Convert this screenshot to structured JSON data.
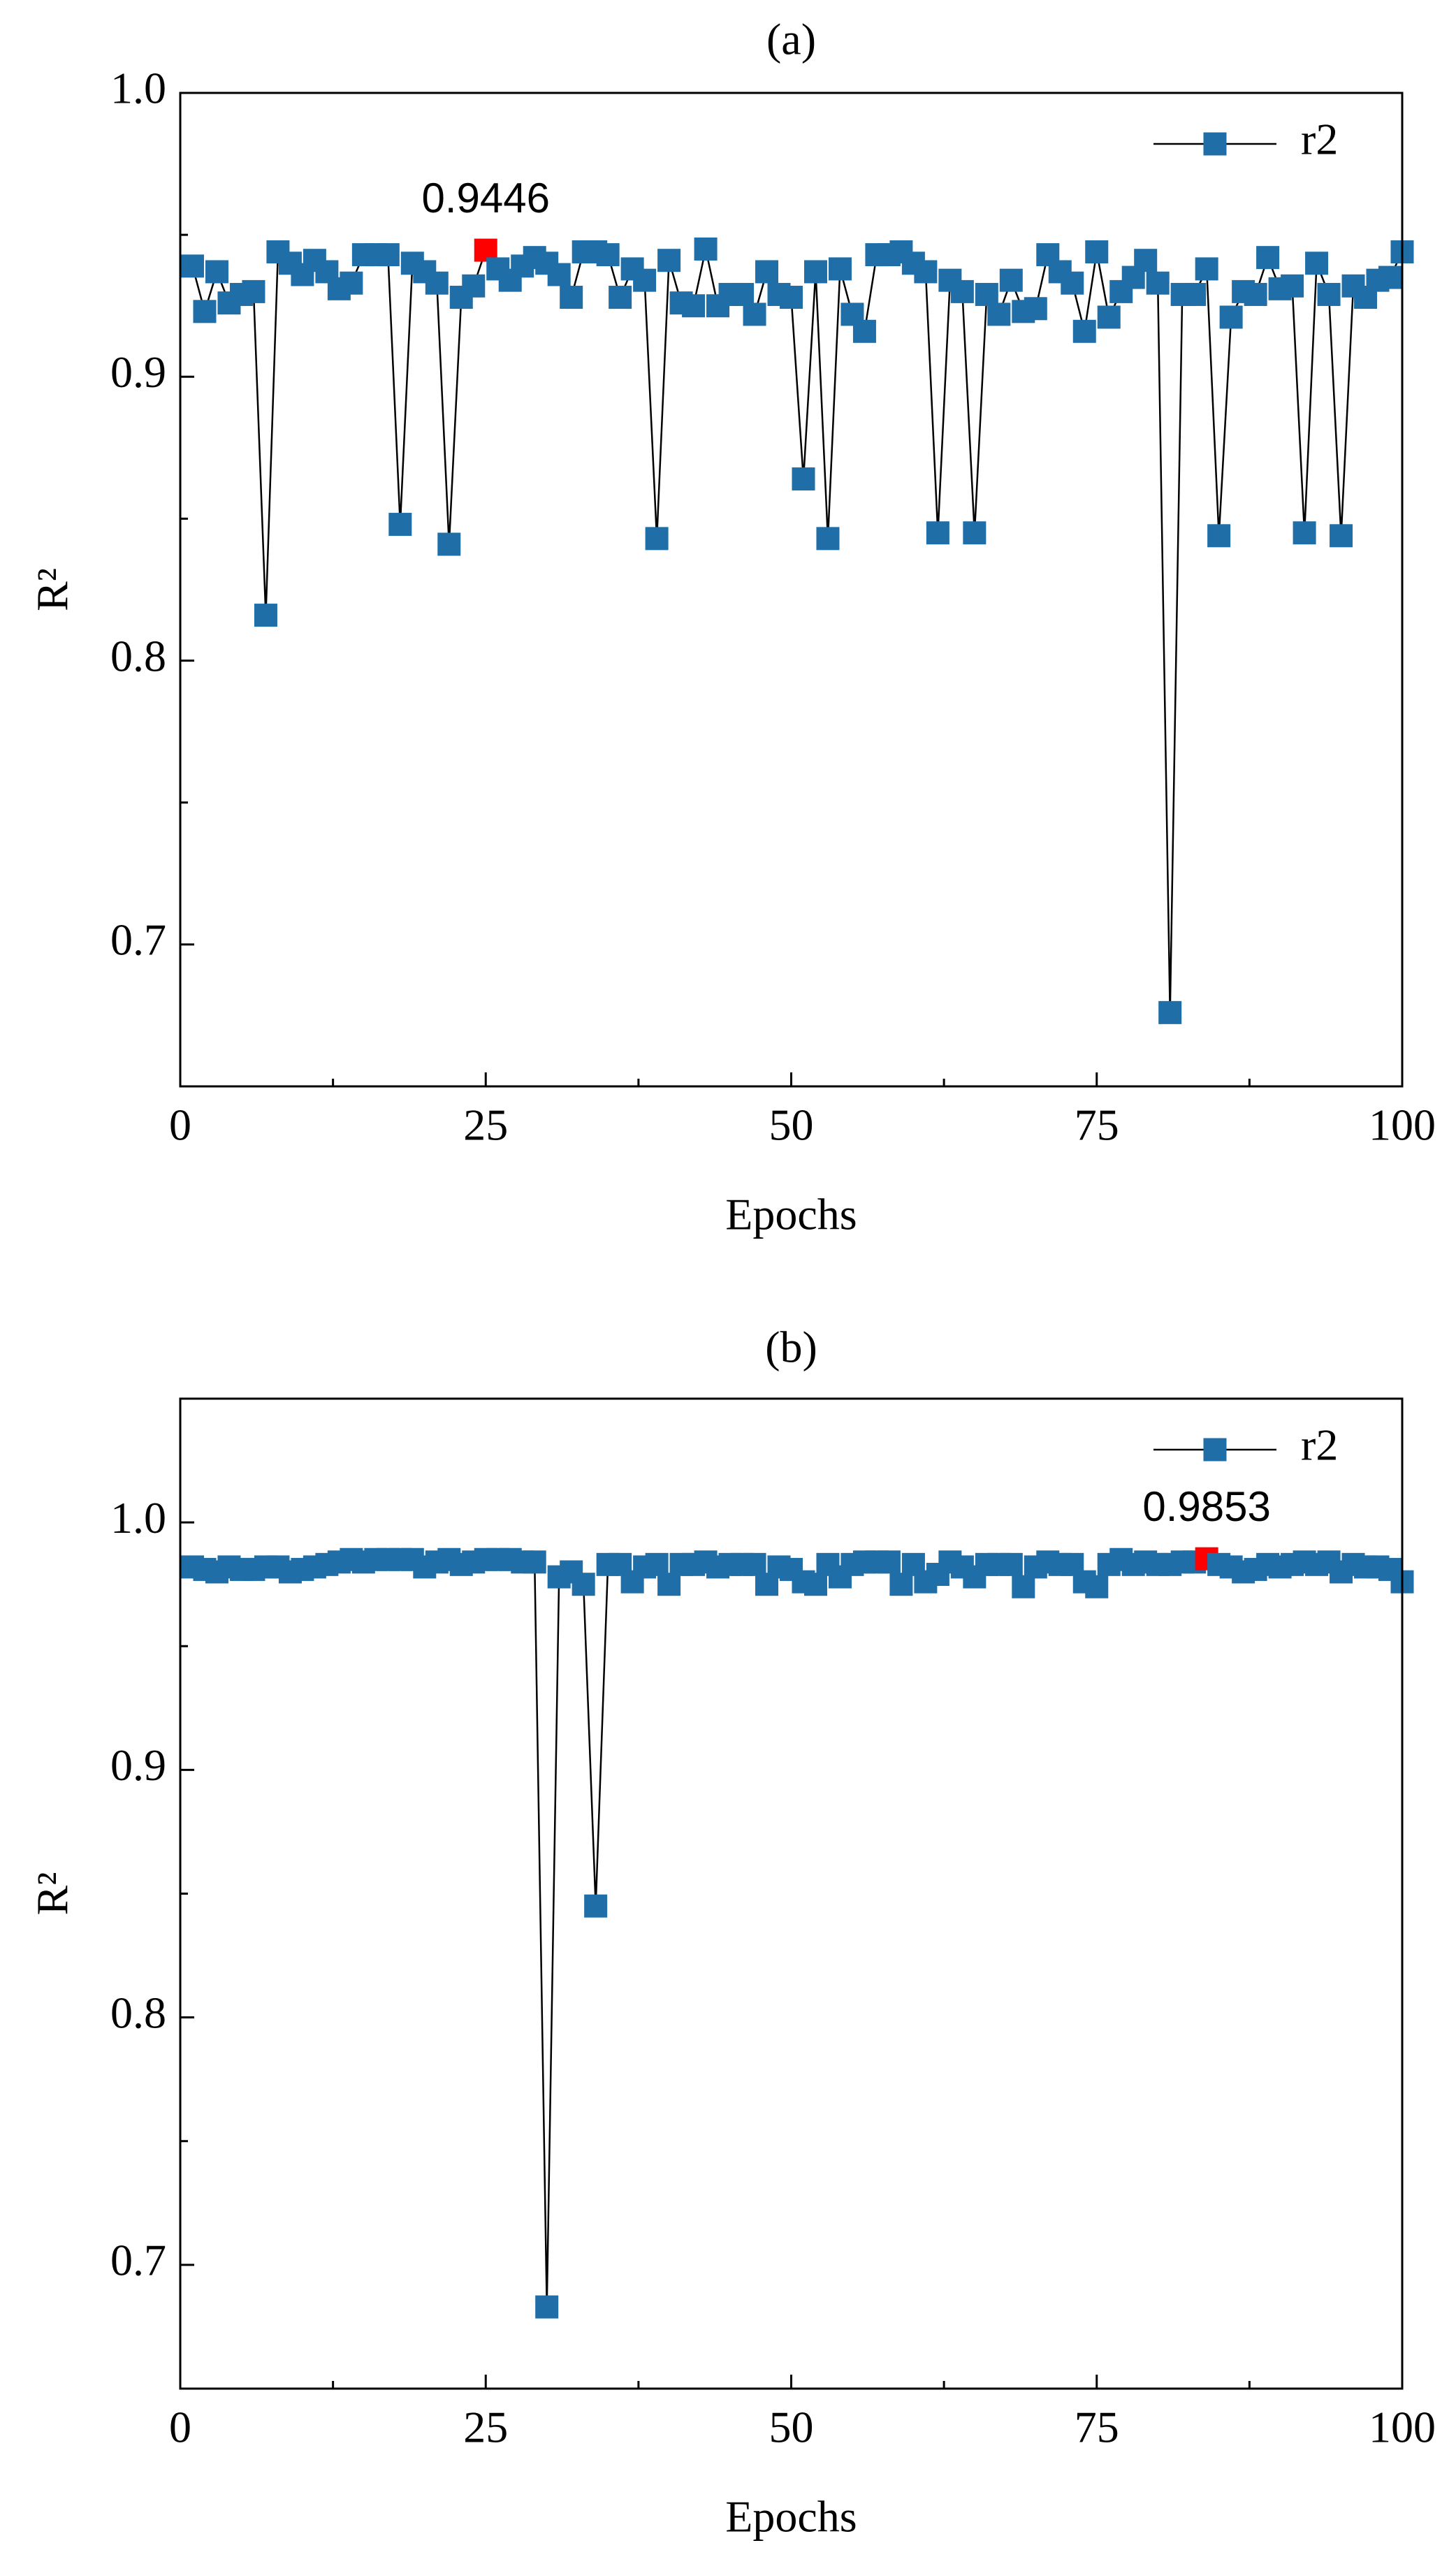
{
  "chart_data": [
    {
      "type": "line",
      "title": "(a)",
      "x_label": "Epochs",
      "y_label": "R²",
      "xlim": [
        0,
        100
      ],
      "xticks": [
        0,
        25,
        50,
        75,
        100
      ],
      "xminorticks": [
        12.5,
        37.5,
        62.5,
        87.5
      ],
      "ylim": [
        0.65,
        1.0
      ],
      "yticks": [
        {
          "value": 0.7,
          "label": "0.7"
        },
        {
          "value": 0.8,
          "label": "0.8"
        },
        {
          "value": 0.9,
          "label": "0.9"
        },
        {
          "value": 1.0,
          "label": "1.0"
        }
      ],
      "yminorticks": [
        0.75,
        0.85,
        0.95
      ],
      "legend": "upper right",
      "line_color": "#000000",
      "x": [
        1,
        2,
        3,
        4,
        5,
        6,
        7,
        8,
        9,
        10,
        11,
        12,
        13,
        14,
        15,
        16,
        17,
        18,
        19,
        20,
        21,
        22,
        23,
        24,
        25,
        26,
        27,
        28,
        29,
        30,
        31,
        32,
        33,
        34,
        35,
        36,
        37,
        38,
        39,
        40,
        41,
        42,
        43,
        44,
        45,
        46,
        47,
        48,
        49,
        50,
        51,
        52,
        53,
        54,
        55,
        56,
        57,
        58,
        59,
        60,
        61,
        62,
        63,
        64,
        65,
        66,
        67,
        68,
        69,
        70,
        71,
        72,
        73,
        74,
        75,
        76,
        77,
        78,
        79,
        80,
        81,
        82,
        83,
        84,
        85,
        86,
        87,
        88,
        89,
        90,
        91,
        92,
        93,
        94,
        95,
        96,
        97,
        98,
        99,
        100
      ],
      "series": [
        {
          "name": "r2",
          "color": "#1f6ea8",
          "values": [
            0.939,
            0.923,
            0.937,
            0.926,
            0.929,
            0.93,
            0.816,
            0.944,
            0.94,
            0.936,
            0.941,
            0.937,
            0.931,
            0.933,
            0.943,
            0.943,
            0.943,
            0.848,
            0.94,
            0.937,
            0.933,
            0.841,
            0.928,
            0.932,
            0.9446,
            0.938,
            0.934,
            0.939,
            0.942,
            0.94,
            0.936,
            0.928,
            0.944,
            0.944,
            0.943,
            0.928,
            0.938,
            0.934,
            0.843,
            0.941,
            0.926,
            0.925,
            0.945,
            0.925,
            0.929,
            0.929,
            0.922,
            0.937,
            0.929,
            0.928,
            0.864,
            0.937,
            0.843,
            0.938,
            0.922,
            0.916,
            0.943,
            0.943,
            0.944,
            0.94,
            0.937,
            0.845,
            0.934,
            0.93,
            0.845,
            0.929,
            0.922,
            0.934,
            0.923,
            0.924,
            0.943,
            0.937,
            0.933,
            0.916,
            0.944,
            0.921,
            0.93,
            0.935,
            0.941,
            0.933,
            0.676,
            0.929,
            0.929,
            0.938,
            0.844,
            0.921,
            0.93,
            0.929,
            0.942,
            0.931,
            0.932,
            0.845,
            0.94,
            0.929,
            0.844,
            0.932,
            0.928,
            0.934,
            0.935,
            0.944
          ]
        }
      ],
      "annotations": [
        {
          "text": "0.9446",
          "x": 25,
          "color": "#ff0000"
        }
      ]
    },
    {
      "type": "line",
      "title": "(b)",
      "x_label": "Epochs",
      "y_label": "R²",
      "xlim": [
        0,
        100
      ],
      "xticks": [
        0,
        25,
        50,
        75,
        100
      ],
      "xminorticks": [
        12.5,
        37.5,
        62.5,
        87.5
      ],
      "ylim": [
        0.65,
        1.05
      ],
      "yticks": [
        {
          "value": 0.7,
          "label": "0.7"
        },
        {
          "value": 0.8,
          "label": "0.8"
        },
        {
          "value": 0.9,
          "label": "0.9"
        },
        {
          "value": 1.0,
          "label": "1.0"
        }
      ],
      "yminorticks": [
        0.75,
        0.85,
        0.95
      ],
      "legend": "upper right",
      "line_color": "#000000",
      "x": [
        1,
        2,
        3,
        4,
        5,
        6,
        7,
        8,
        9,
        10,
        11,
        12,
        13,
        14,
        15,
        16,
        17,
        18,
        19,
        20,
        21,
        22,
        23,
        24,
        25,
        26,
        27,
        28,
        29,
        30,
        31,
        32,
        33,
        34,
        35,
        36,
        37,
        38,
        39,
        40,
        41,
        42,
        43,
        44,
        45,
        46,
        47,
        48,
        49,
        50,
        51,
        52,
        53,
        54,
        55,
        56,
        57,
        58,
        59,
        60,
        61,
        62,
        63,
        64,
        65,
        66,
        67,
        68,
        69,
        70,
        71,
        72,
        73,
        74,
        75,
        76,
        77,
        78,
        79,
        80,
        81,
        82,
        83,
        84,
        85,
        86,
        87,
        88,
        89,
        90,
        91,
        92,
        93,
        94,
        95,
        96,
        97,
        98,
        99,
        100
      ],
      "series": [
        {
          "name": "r2",
          "color": "#1f6ea8",
          "values": [
            0.982,
            0.981,
            0.98,
            0.982,
            0.981,
            0.981,
            0.982,
            0.982,
            0.98,
            0.981,
            0.982,
            0.983,
            0.984,
            0.985,
            0.984,
            0.985,
            0.985,
            0.985,
            0.985,
            0.982,
            0.984,
            0.985,
            0.983,
            0.984,
            0.985,
            0.985,
            0.985,
            0.984,
            0.984,
            0.683,
            0.978,
            0.98,
            0.975,
            0.845,
            0.983,
            0.983,
            0.976,
            0.982,
            0.983,
            0.975,
            0.983,
            0.983,
            0.984,
            0.982,
            0.983,
            0.983,
            0.983,
            0.975,
            0.982,
            0.981,
            0.976,
            0.975,
            0.983,
            0.978,
            0.983,
            0.984,
            0.984,
            0.984,
            0.975,
            0.983,
            0.976,
            0.979,
            0.984,
            0.982,
            0.978,
            0.983,
            0.983,
            0.983,
            0.974,
            0.982,
            0.984,
            0.983,
            0.983,
            0.976,
            0.974,
            0.983,
            0.985,
            0.983,
            0.984,
            0.983,
            0.983,
            0.984,
            0.984,
            0.9853,
            0.983,
            0.982,
            0.98,
            0.981,
            0.983,
            0.982,
            0.983,
            0.984,
            0.983,
            0.984,
            0.98,
            0.983,
            0.982,
            0.982,
            0.981,
            0.976
          ]
        }
      ],
      "annotations": [
        {
          "text": "0.9853",
          "x": 84,
          "color": "#ff0000"
        }
      ]
    }
  ]
}
